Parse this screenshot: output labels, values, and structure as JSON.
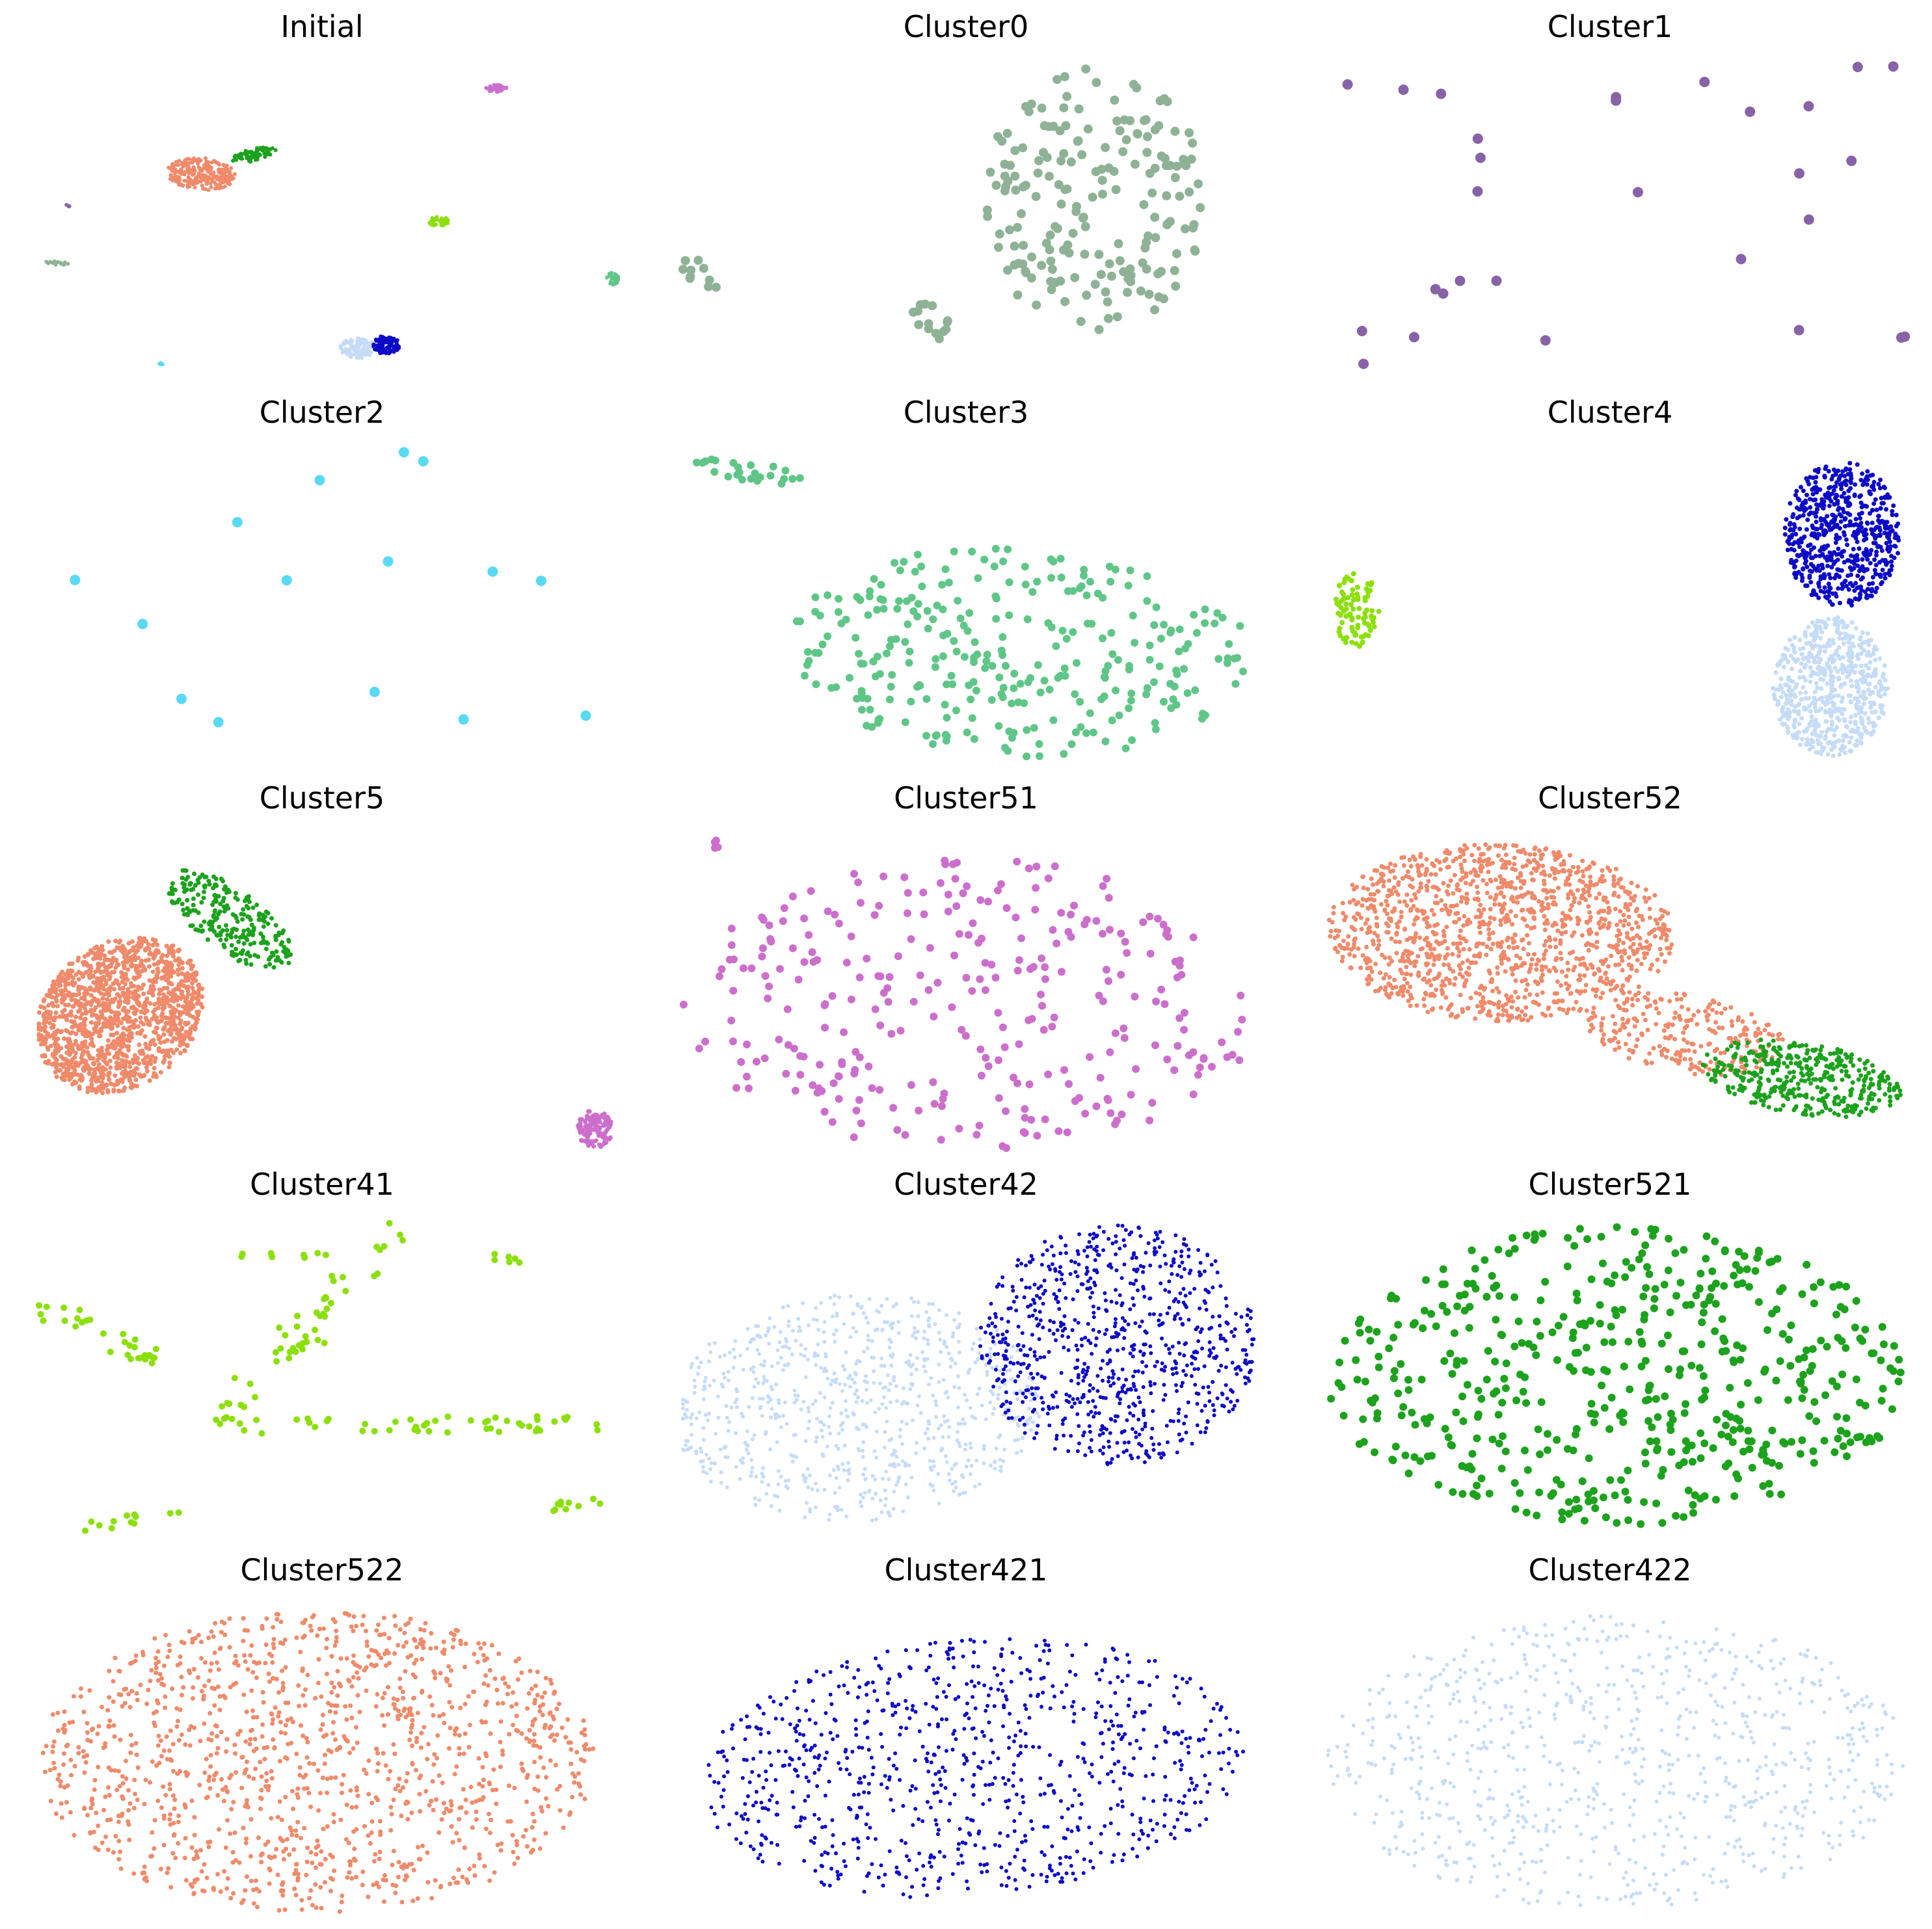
{
  "chart_data": [
    {
      "type": "scatter",
      "title": "Initial",
      "xlim": [
        0,
        100
      ],
      "ylim": [
        0,
        100
      ],
      "axis": "off",
      "grid": false,
      "blobs": [
        {
          "color": "#ef8a6a",
          "shape": "ellipse",
          "cx": 28,
          "cy": 64,
          "rx": 6,
          "ry": 5,
          "rot": -20,
          "n": 260,
          "r": 3
        },
        {
          "color": "#1ca21c",
          "shape": "ellipse",
          "cx": 37,
          "cy": 70,
          "rx": 4.5,
          "ry": 1.8,
          "rot": 30,
          "n": 80,
          "r": 3
        },
        {
          "color": "#cc6fcc",
          "shape": "ellipse",
          "cx": 79,
          "cy": 91,
          "rx": 1.8,
          "ry": 1.2,
          "rot": 0,
          "n": 40,
          "r": 3
        },
        {
          "color": "#8ce00a",
          "shape": "ellipse",
          "cx": 69,
          "cy": 49,
          "rx": 1.8,
          "ry": 1.5,
          "rot": 0,
          "n": 40,
          "r": 3
        },
        {
          "color": "#5fc688",
          "shape": "ellipse",
          "cx": 99,
          "cy": 31,
          "rx": 1.2,
          "ry": 2.0,
          "rot": 0,
          "n": 30,
          "r": 3
        },
        {
          "color": "#c6dcf6",
          "shape": "ellipse",
          "cx": 55,
          "cy": 9,
          "rx": 3,
          "ry": 3.2,
          "rot": 0,
          "n": 120,
          "r": 3
        },
        {
          "color": "#0d0ac6",
          "shape": "ellipse",
          "cx": 60,
          "cy": 10,
          "rx": 2.3,
          "ry": 3.0,
          "rot": 0,
          "n": 110,
          "r": 3
        },
        {
          "color": "#8fb296",
          "shape": "ellipse",
          "cx": 3,
          "cy": 36,
          "rx": 2.3,
          "ry": 0.8,
          "rot": -10,
          "n": 14,
          "r": 3
        },
        {
          "color": "#8862a6",
          "shape": "ellipse",
          "cx": 5,
          "cy": 54,
          "rx": 0.4,
          "ry": 0.4,
          "rot": 0,
          "n": 4,
          "r": 3
        },
        {
          "color": "#5ad9f4",
          "shape": "ellipse",
          "cx": 21,
          "cy": 4,
          "rx": 0.4,
          "ry": 0.4,
          "rot": 0,
          "n": 4,
          "r": 3
        }
      ]
    },
    {
      "type": "scatter",
      "title": "Cluster0",
      "xlim": [
        0,
        100
      ],
      "ylim": [
        0,
        100
      ],
      "axis": "off",
      "grid": false,
      "blobs": [
        {
          "color": "#8fb296",
          "shape": "ellipse",
          "cx": 71,
          "cy": 56,
          "rx": 19,
          "ry": 42,
          "rot": 0,
          "n": 190,
          "r": 7
        },
        {
          "color": "#8fb296",
          "shape": "ellipse",
          "cx": 3,
          "cy": 33,
          "rx": 3,
          "ry": 6,
          "rot": 30,
          "n": 10,
          "r": 7
        },
        {
          "color": "#8fb296",
          "shape": "ellipse",
          "cx": 43,
          "cy": 17,
          "rx": 3,
          "ry": 7,
          "rot": 20,
          "n": 14,
          "r": 7
        }
      ]
    },
    {
      "type": "scatter",
      "title": "Cluster1",
      "xlim": [
        0,
        100
      ],
      "ylim": [
        0,
        100
      ],
      "axis": "off",
      "grid": false,
      "blobs": [
        {
          "color": "#8862a6",
          "shape": "uniform",
          "cx": 50,
          "cy": 50,
          "rx": 50,
          "ry": 48,
          "rot": 0,
          "n": 29,
          "r": 8
        }
      ]
    },
    {
      "type": "scatter",
      "title": "Cluster2",
      "xlim": [
        0,
        100
      ],
      "ylim": [
        0,
        100
      ],
      "axis": "off",
      "grid": false,
      "blobs": [
        {
          "color": "#5ad9f4",
          "shape": "uniform",
          "cx": 50,
          "cy": 50,
          "rx": 50,
          "ry": 48,
          "rot": 0,
          "n": 15,
          "r": 8
        }
      ]
    },
    {
      "type": "scatter",
      "title": "Cluster3",
      "xlim": [
        0,
        100
      ],
      "ylim": [
        0,
        100
      ],
      "axis": "off",
      "grid": false,
      "blobs": [
        {
          "color": "#5fc688",
          "shape": "ellipse",
          "cx": 58,
          "cy": 35,
          "rx": 41,
          "ry": 33,
          "rot": -12,
          "n": 300,
          "r": 6
        },
        {
          "color": "#5fc688",
          "shape": "ellipse",
          "cx": 11,
          "cy": 92,
          "rx": 11,
          "ry": 3,
          "rot": -18,
          "n": 24,
          "r": 6
        }
      ]
    },
    {
      "type": "scatter",
      "title": "Cluster4",
      "xlim": [
        0,
        100
      ],
      "ylim": [
        0,
        100
      ],
      "axis": "off",
      "grid": false,
      "blobs": [
        {
          "color": "#0d0ac6",
          "shape": "ellipse",
          "cx": 89,
          "cy": 72,
          "rx": 10,
          "ry": 23,
          "rot": 0,
          "n": 650,
          "r": 3.5
        },
        {
          "color": "#c6dcf6",
          "shape": "ellipse",
          "cx": 87,
          "cy": 24,
          "rx": 10,
          "ry": 22,
          "rot": 0,
          "n": 600,
          "r": 3.5
        },
        {
          "color": "#8ce00a",
          "shape": "ellipse",
          "cx": 5,
          "cy": 48,
          "rx": 4,
          "ry": 12,
          "rot": 0,
          "n": 90,
          "r": 4
        }
      ]
    },
    {
      "type": "scatter",
      "title": "Cluster5",
      "xlim": [
        0,
        100
      ],
      "ylim": [
        0,
        100
      ],
      "axis": "off",
      "grid": false,
      "blobs": [
        {
          "color": "#ef8a6a",
          "shape": "ellipse",
          "cx": 14,
          "cy": 42,
          "rx": 14,
          "ry": 25,
          "rot": -10,
          "n": 1400,
          "r": 3.5
        },
        {
          "color": "#1ca21c",
          "shape": "ellipse",
          "cx": 33,
          "cy": 72,
          "rx": 7,
          "ry": 18,
          "rot": 30,
          "n": 260,
          "r": 3.5
        },
        {
          "color": "#cc6fcc",
          "shape": "ellipse",
          "cx": 96,
          "cy": 6,
          "rx": 3,
          "ry": 6,
          "rot": 0,
          "n": 120,
          "r": 3.5
        }
      ]
    },
    {
      "type": "scatter",
      "title": "Cluster51",
      "xlim": [
        0,
        100
      ],
      "ylim": [
        0,
        100
      ],
      "axis": "off",
      "grid": false,
      "blobs": [
        {
          "color": "#cc6fcc",
          "shape": "ellipse",
          "cx": 50,
          "cy": 45,
          "rx": 50,
          "ry": 46,
          "rot": 0,
          "n": 300,
          "r": 6
        },
        {
          "color": "#cc6fcc",
          "shape": "ellipse",
          "cx": 7,
          "cy": 96,
          "rx": 2,
          "ry": 2,
          "rot": 0,
          "n": 4,
          "r": 6
        }
      ]
    },
    {
      "type": "scatter",
      "title": "Cluster52",
      "xlim": [
        0,
        100
      ],
      "ylim": [
        0,
        100
      ],
      "axis": "off",
      "grid": false,
      "blobs": [
        {
          "color": "#ef8a6a",
          "shape": "ellipse",
          "cx": 30,
          "cy": 68,
          "rx": 30,
          "ry": 28,
          "rot": -15,
          "n": 1300,
          "r": 3.5
        },
        {
          "color": "#ef8a6a",
          "shape": "ellipse",
          "cx": 62,
          "cy": 36,
          "rx": 18,
          "ry": 12,
          "rot": -25,
          "n": 250,
          "r": 3.5
        },
        {
          "color": "#1ca21c",
          "shape": "ellipse",
          "cx": 82,
          "cy": 22,
          "rx": 18,
          "ry": 11,
          "rot": -22,
          "n": 420,
          "r": 3.5
        }
      ]
    },
    {
      "type": "scatter",
      "title": "Cluster41",
      "xlim": [
        0,
        100
      ],
      "ylim": [
        0,
        100
      ],
      "axis": "off",
      "grid": false,
      "blobs": [
        {
          "color": "#8ce00a",
          "shape": "line",
          "x1": 1,
          "y1": 72,
          "x2": 20,
          "y2": 55,
          "spread": 6,
          "n": 30,
          "r": 5
        },
        {
          "color": "#8ce00a",
          "shape": "line",
          "x1": 31,
          "y1": 37,
          "x2": 63,
          "y2": 98,
          "spread": 6,
          "n": 40,
          "r": 5
        },
        {
          "color": "#8ce00a",
          "shape": "line",
          "x1": 30,
          "y1": 34,
          "x2": 96,
          "y2": 35,
          "spread": 5,
          "n": 50,
          "r": 5
        },
        {
          "color": "#8ce00a",
          "shape": "line",
          "x1": 8,
          "y1": 2,
          "x2": 25,
          "y2": 8,
          "spread": 3,
          "n": 12,
          "r": 5
        },
        {
          "color": "#8ce00a",
          "shape": "line",
          "x1": 88,
          "y1": 8,
          "x2": 99,
          "y2": 12,
          "spread": 3,
          "n": 10,
          "r": 5
        },
        {
          "color": "#8ce00a",
          "shape": "line",
          "x1": 30,
          "y1": 88,
          "x2": 50,
          "y2": 88,
          "spread": 2,
          "n": 8,
          "r": 5
        },
        {
          "color": "#8ce00a",
          "shape": "line",
          "x1": 78,
          "y1": 88,
          "x2": 84,
          "y2": 86,
          "spread": 2,
          "n": 6,
          "r": 5
        },
        {
          "color": "#8ce00a",
          "shape": "line",
          "x1": 42,
          "y1": 55,
          "x2": 50,
          "y2": 65,
          "spread": 4,
          "n": 10,
          "r": 5
        }
      ]
    },
    {
      "type": "scatter",
      "title": "Cluster42",
      "xlim": [
        0,
        100
      ],
      "ylim": [
        0,
        100
      ],
      "axis": "off",
      "grid": false,
      "blobs": [
        {
          "color": "#c6dcf6",
          "shape": "ellipse",
          "cx": 30,
          "cy": 40,
          "rx": 32,
          "ry": 36,
          "rot": -10,
          "n": 800,
          "r": 3
        },
        {
          "color": "#0d0ac6",
          "shape": "ellipse",
          "cx": 75,
          "cy": 60,
          "rx": 24,
          "ry": 38,
          "rot": 0,
          "n": 800,
          "r": 3
        }
      ]
    },
    {
      "type": "scatter",
      "title": "Cluster521",
      "xlim": [
        0,
        100
      ],
      "ylim": [
        0,
        100
      ],
      "axis": "off",
      "grid": false,
      "blobs": [
        {
          "color": "#1ca21c",
          "shape": "ellipse",
          "cx": 50,
          "cy": 50,
          "rx": 50,
          "ry": 47,
          "rot": 0,
          "n": 540,
          "r": 6
        }
      ]
    },
    {
      "type": "scatter",
      "title": "Cluster522",
      "xlim": [
        0,
        100
      ],
      "ylim": [
        0,
        100
      ],
      "axis": "off",
      "grid": false,
      "blobs": [
        {
          "color": "#ef8a6a",
          "shape": "ellipse",
          "cx": 48,
          "cy": 50,
          "rx": 48,
          "ry": 48,
          "rot": 0,
          "n": 1300,
          "r": 3.5
        }
      ]
    },
    {
      "type": "scatter",
      "title": "Cluster421",
      "xlim": [
        0,
        100
      ],
      "ylim": [
        0,
        100
      ],
      "axis": "off",
      "grid": false,
      "blobs": [
        {
          "color": "#0d0ac6",
          "shape": "ellipse",
          "cx": 50,
          "cy": 48,
          "rx": 48,
          "ry": 40,
          "rot": 22,
          "n": 850,
          "r": 3
        }
      ]
    },
    {
      "type": "scatter",
      "title": "Cluster422",
      "xlim": [
        0,
        100
      ],
      "ylim": [
        0,
        100
      ],
      "axis": "off",
      "grid": false,
      "blobs": [
        {
          "color": "#c6dcf6",
          "shape": "ellipse",
          "cx": 50,
          "cy": 50,
          "rx": 50,
          "ry": 47,
          "rot": 0,
          "n": 850,
          "r": 3
        }
      ]
    }
  ]
}
